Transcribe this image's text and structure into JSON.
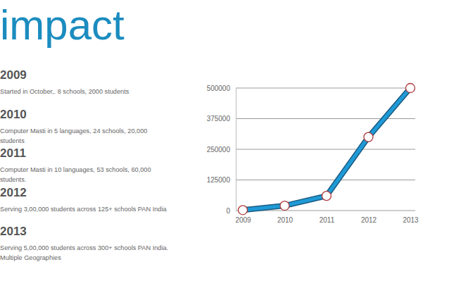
{
  "chart_data": {
    "type": "line",
    "title": "impact",
    "categories": [
      "2009",
      "2010",
      "2011",
      "2012",
      "2013"
    ],
    "values": [
      2000,
      20000,
      60000,
      300000,
      500000
    ],
    "color": "#1e9ad6",
    "marker": "circle",
    "ylim": [
      0,
      500000
    ],
    "yticks": [
      0,
      125000,
      250000,
      375000,
      500000
    ],
    "grid": true,
    "annotations": [
      {
        "heading": "2009",
        "lines": [
          "Started in October,. 8 schools, 2000 students"
        ]
      },
      {
        "heading": "2010",
        "lines": [
          "Computer Masti in 5 languages, 24 schools, 20,000",
          "students"
        ]
      },
      {
        "heading": "2011",
        "lines": [
          "Computer Masti in 10 languages, 53 schools, 60,000",
          "students."
        ]
      },
      {
        "heading": "2012",
        "lines": [
          "Serving 3,00,000 students across 125+ schools PAN India"
        ]
      },
      {
        "heading": "2013",
        "lines": [
          "Serving 5,00,000 students across 300+ schools PAN India.",
          "Multiple Geographies"
        ]
      }
    ]
  }
}
